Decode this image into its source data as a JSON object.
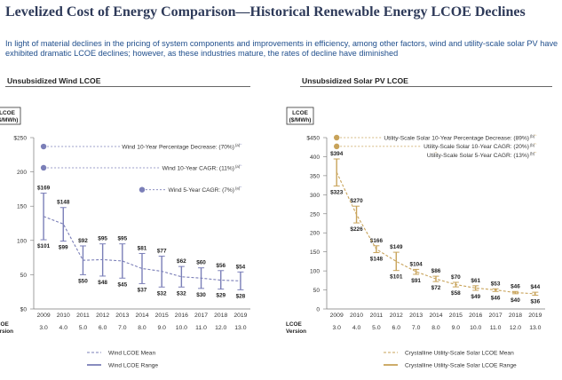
{
  "page": {
    "title": "Levelized Cost of Energy Comparison—Historical Renewable Energy LCOE Declines",
    "subtitle": "In light of material declines in the pricing of system components and improvements in efficiency, among other factors, wind and utility-scale solar PV have exhibited dramatic LCOE declines; however, as these industries mature, the rates of decline have diminished"
  },
  "colors": {
    "wind": "#7b7fb8",
    "solar": "#c8a35a",
    "title": "#2e3a59",
    "subtitle": "#1f4e8c"
  },
  "chart_data": [
    {
      "type": "line",
      "title": "Unsubsidized Wind LCOE",
      "ylabel": "LCOE ($/MWh)",
      "ylim": [
        0,
        250
      ],
      "yticks": [
        0,
        50,
        100,
        150,
        200,
        250
      ],
      "ytick_labels": [
        "$0",
        "50",
        "100",
        "150",
        "200",
        "$250"
      ],
      "x": [
        "2009",
        "2010",
        "2011",
        "2012",
        "2013",
        "2014",
        "2015",
        "2016",
        "2017",
        "2018",
        "2019"
      ],
      "version_label": "LCOE Version",
      "versions": [
        "3.0",
        "4.0",
        "5.0",
        "6.0",
        "7.0",
        "8.0",
        "9.0",
        "10.0",
        "11.0",
        "12.0",
        "13.0"
      ],
      "series": [
        {
          "name": "Wind LCOE Mean",
          "values": [
            135,
            124,
            71,
            72,
            70,
            59,
            55,
            47,
            45,
            42,
            41
          ]
        },
        {
          "name": "Wind LCOE Range",
          "high": [
            169,
            148,
            92,
            95,
            95,
            81,
            77,
            62,
            60,
            56,
            54
          ],
          "low": [
            101,
            99,
            50,
            48,
            45,
            37,
            32,
            32,
            30,
            29,
            28
          ],
          "high_labels": [
            "$169",
            "$148",
            "$92",
            "$95",
            "$95",
            "$81",
            "$77",
            "$62",
            "$60",
            "$56",
            "$54"
          ],
          "low_labels": [
            "$101",
            "$99",
            "$50",
            "$48",
            "$45",
            "$37",
            "$32",
            "$32",
            "$30",
            "$29",
            "$28"
          ]
        }
      ],
      "annotations": [
        {
          "text": "Wind 10-Year Percentage Decrease: (70%)",
          "note": "(a)",
          "from": "2009",
          "to": "2019",
          "y": 237
        },
        {
          "text": "Wind 10-Year CAGR: (11%)",
          "note": "(a)",
          "from": "2009",
          "to": "2019",
          "y": 206
        },
        {
          "text": "Wind 5-Year CAGR: (7%)",
          "note": "(a)",
          "from": "2014",
          "to": "2019",
          "y": 174
        }
      ]
    },
    {
      "type": "line",
      "title": "Unsubsidized Solar PV LCOE",
      "ylabel": "LCOE ($/MWh)",
      "ylim": [
        0,
        450
      ],
      "yticks": [
        0,
        50,
        100,
        150,
        200,
        250,
        300,
        350,
        400,
        450
      ],
      "ytick_labels": [
        "0",
        "50",
        "100",
        "150",
        "200",
        "250",
        "300",
        "350",
        "400",
        "$450"
      ],
      "x": [
        "2009",
        "2010",
        "2011",
        "2012",
        "2013",
        "2014",
        "2015",
        "2016",
        "2017",
        "2018",
        "2019"
      ],
      "version_label": "LCOE Version",
      "versions": [
        "3.0",
        "4.0",
        "5.0",
        "6.0",
        "7.0",
        "8.0",
        "9.0",
        "10.0",
        "11.0",
        "12.0",
        "13.0"
      ],
      "series": [
        {
          "name": "Crystalline Utility-Scale Solar LCOE Mean",
          "values": [
            359,
            248,
            157,
            125,
            98,
            79,
            64,
            55,
            50,
            43,
            40
          ]
        },
        {
          "name": "Crystalline Utility-Scale Solar LCOE Range",
          "high": [
            394,
            270,
            166,
            149,
            104,
            86,
            70,
            61,
            53,
            46,
            44
          ],
          "low": [
            323,
            226,
            148,
            101,
            91,
            72,
            58,
            49,
            46,
            40,
            36
          ],
          "high_labels": [
            "$394",
            "$270",
            "$166",
            "$149",
            "$104",
            "$86",
            "$70",
            "$61",
            "$53",
            "$46",
            "$44"
          ],
          "low_labels": [
            "$323",
            "$226",
            "$148",
            "$101",
            "$91",
            "$72",
            "$58",
            "$49",
            "$46",
            "$40",
            "$36"
          ]
        }
      ],
      "annotations": [
        {
          "text": "Utility-Scale Solar 10-Year Percentage Decrease: (89%)",
          "note": "(b)",
          "from": "2009",
          "to": "2019",
          "y": 450
        },
        {
          "text": "Utility-Scale Solar 10-Year CAGR: (20%)",
          "note": "(b)",
          "from": "2009",
          "to": "2019",
          "y": 427
        },
        {
          "text": "Utility-Scale Solar 5-Year CAGR: (13%)",
          "note": "(b)",
          "from": "2014",
          "to": "2019",
          "y": 404
        }
      ]
    }
  ]
}
